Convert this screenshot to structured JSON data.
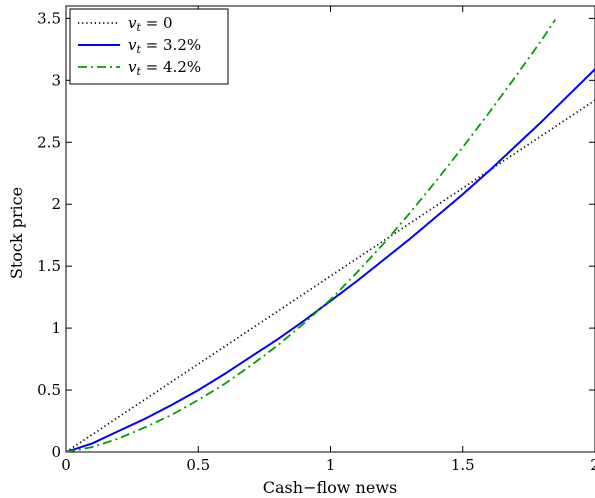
{
  "chart_data": {
    "type": "line",
    "xlabel": "Cash−flow news",
    "ylabel": "Stock price",
    "xlim": [
      0,
      2
    ],
    "ylim": [
      0,
      3.6
    ],
    "xticks": [
      0,
      0.5,
      1,
      1.5,
      2
    ],
    "xtick_labels": [
      "0",
      "0.5",
      "1",
      "1.5",
      "2"
    ],
    "yticks": [
      0,
      0.5,
      1,
      1.5,
      2,
      2.5,
      3,
      3.5
    ],
    "ytick_labels": [
      "0",
      "0.5",
      "1",
      "1.5",
      "2",
      "2.5",
      "3",
      "3.5"
    ],
    "grid": false,
    "legend_position": "top-left",
    "series": [
      {
        "name": "v_t = 0",
        "legend_var": "v",
        "legend_sub": "t",
        "legend_rest": " = 0",
        "color": "#000000",
        "style": "dotted",
        "x": [
          0,
          0.25,
          0.5,
          0.75,
          1.0,
          1.25,
          1.5,
          1.75,
          2.0
        ],
        "y": [
          0,
          0.355,
          0.71,
          1.065,
          1.42,
          1.775,
          2.13,
          2.485,
          2.84
        ]
      },
      {
        "name": "v_t = 3.2%",
        "legend_var": "v",
        "legend_sub": "t",
        "legend_rest": " = 3.2%",
        "color": "#0000ff",
        "style": "solid",
        "x": [
          0,
          0.1,
          0.2,
          0.3,
          0.4,
          0.5,
          0.6,
          0.7,
          0.8,
          0.9,
          1.0,
          1.1,
          1.2,
          1.3,
          1.4,
          1.5,
          1.6,
          1.7,
          1.8,
          1.9,
          2.0
        ],
        "y": [
          0,
          0.07,
          0.17,
          0.27,
          0.38,
          0.5,
          0.63,
          0.77,
          0.91,
          1.06,
          1.22,
          1.38,
          1.55,
          1.72,
          1.9,
          2.08,
          2.27,
          2.47,
          2.67,
          2.88,
          3.09
        ]
      },
      {
        "name": "v_t = 4.2%",
        "legend_var": "v",
        "legend_sub": "t",
        "legend_rest": " = 4.2%",
        "color": "#00a000",
        "style": "dashdot",
        "x": [
          0,
          0.1,
          0.2,
          0.3,
          0.4,
          0.5,
          0.6,
          0.7,
          0.8,
          0.9,
          1.0,
          1.1,
          1.2,
          1.3,
          1.4,
          1.5,
          1.6,
          1.7,
          1.8,
          1.85
        ],
        "y": [
          0,
          0.04,
          0.11,
          0.2,
          0.3,
          0.42,
          0.55,
          0.7,
          0.86,
          1.04,
          1.23,
          1.45,
          1.68,
          1.93,
          2.19,
          2.46,
          2.74,
          3.03,
          3.33,
          3.49
        ]
      }
    ]
  }
}
